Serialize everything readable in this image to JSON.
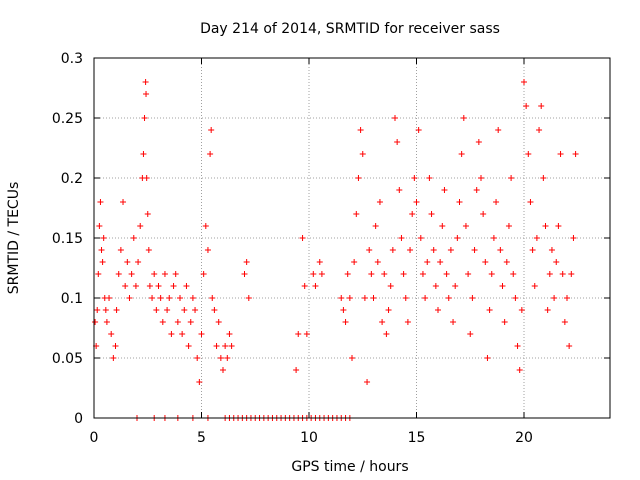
{
  "chart_data": {
    "type": "scatter",
    "title": "Day 214 of 2014, SRMTID for receiver sass",
    "xlabel": "GPS time / hours",
    "ylabel": "SRMTID / TECUs",
    "xlim": [
      0,
      24
    ],
    "ylim": [
      0,
      0.3
    ],
    "x_ticks": [
      0,
      5,
      10,
      15,
      20
    ],
    "x_tick_labels": [
      "0",
      "5",
      "10",
      "15",
      "20"
    ],
    "y_ticks": [
      0,
      0.05,
      0.1,
      0.15,
      0.2,
      0.25,
      0.3
    ],
    "y_tick_labels": [
      "0",
      "0.05",
      "0.1",
      "0.15",
      "0.2",
      "0.25",
      "0.3"
    ],
    "grid": true,
    "marker": "+",
    "series": [
      {
        "name": "SRMTID",
        "color": "#ff0000",
        "points": [
          [
            0.05,
            0.08
          ],
          [
            0.1,
            0.06
          ],
          [
            0.15,
            0.09
          ],
          [
            0.2,
            0.12
          ],
          [
            0.25,
            0.16
          ],
          [
            0.3,
            0.18
          ],
          [
            0.35,
            0.14
          ],
          [
            0.4,
            0.13
          ],
          [
            0.45,
            0.15
          ],
          [
            0.5,
            0.1
          ],
          [
            0.55,
            0.09
          ],
          [
            0.6,
            0.08
          ],
          [
            0.7,
            0.1
          ],
          [
            0.8,
            0.07
          ],
          [
            0.9,
            0.05
          ],
          [
            1.0,
            0.06
          ],
          [
            1.05,
            0.09
          ],
          [
            1.15,
            0.12
          ],
          [
            1.25,
            0.14
          ],
          [
            1.35,
            0.18
          ],
          [
            1.45,
            0.11
          ],
          [
            1.55,
            0.13
          ],
          [
            1.65,
            0.1
          ],
          [
            1.75,
            0.12
          ],
          [
            1.85,
            0.15
          ],
          [
            1.95,
            0.11
          ],
          [
            2.05,
            0.13
          ],
          [
            2.15,
            0.16
          ],
          [
            2.25,
            0.2
          ],
          [
            2.3,
            0.22
          ],
          [
            2.35,
            0.25
          ],
          [
            2.4,
            0.28
          ],
          [
            2.42,
            0.27
          ],
          [
            2.45,
            0.2
          ],
          [
            2.5,
            0.17
          ],
          [
            2.55,
            0.14
          ],
          [
            2.6,
            0.11
          ],
          [
            2.7,
            0.1
          ],
          [
            2.8,
            0.12
          ],
          [
            2.9,
            0.09
          ],
          [
            3.0,
            0.11
          ],
          [
            3.1,
            0.1
          ],
          [
            3.2,
            0.08
          ],
          [
            3.3,
            0.12
          ],
          [
            3.4,
            0.09
          ],
          [
            3.5,
            0.1
          ],
          [
            3.6,
            0.07
          ],
          [
            3.7,
            0.11
          ],
          [
            3.8,
            0.12
          ],
          [
            3.9,
            0.08
          ],
          [
            4.0,
            0.1
          ],
          [
            4.1,
            0.07
          ],
          [
            4.2,
            0.09
          ],
          [
            4.3,
            0.11
          ],
          [
            4.4,
            0.06
          ],
          [
            4.5,
            0.08
          ],
          [
            4.6,
            0.1
          ],
          [
            4.7,
            0.09
          ],
          [
            4.8,
            0.05
          ],
          [
            4.9,
            0.03
          ],
          [
            5.0,
            0.07
          ],
          [
            5.1,
            0.12
          ],
          [
            5.2,
            0.16
          ],
          [
            5.3,
            0.14
          ],
          [
            5.4,
            0.22
          ],
          [
            5.45,
            0.24
          ],
          [
            5.5,
            0.1
          ],
          [
            5.6,
            0.09
          ],
          [
            5.7,
            0.06
          ],
          [
            5.8,
            0.08
          ],
          [
            5.9,
            0.05
          ],
          [
            6.0,
            0.04
          ],
          [
            6.1,
            0.06
          ],
          [
            6.2,
            0.05
          ],
          [
            6.3,
            0.07
          ],
          [
            6.4,
            0.06
          ],
          [
            7.0,
            0.12
          ],
          [
            7.1,
            0.13
          ],
          [
            7.2,
            0.1
          ],
          [
            9.4,
            0.04
          ],
          [
            9.5,
            0.07
          ],
          [
            9.7,
            0.15
          ],
          [
            9.8,
            0.11
          ],
          [
            9.9,
            0.07
          ],
          [
            10.2,
            0.12
          ],
          [
            10.3,
            0.11
          ],
          [
            10.5,
            0.13
          ],
          [
            10.6,
            0.12
          ],
          [
            11.5,
            0.1
          ],
          [
            11.6,
            0.09
          ],
          [
            11.7,
            0.08
          ],
          [
            11.8,
            0.12
          ],
          [
            11.9,
            0.1
          ],
          [
            12.0,
            0.05
          ],
          [
            12.1,
            0.13
          ],
          [
            12.2,
            0.17
          ],
          [
            12.3,
            0.2
          ],
          [
            12.4,
            0.24
          ],
          [
            12.5,
            0.22
          ],
          [
            12.6,
            0.1
          ],
          [
            12.7,
            0.03
          ],
          [
            12.8,
            0.14
          ],
          [
            12.9,
            0.12
          ],
          [
            13.0,
            0.1
          ],
          [
            13.1,
            0.16
          ],
          [
            13.2,
            0.13
          ],
          [
            13.3,
            0.18
          ],
          [
            13.4,
            0.08
          ],
          [
            13.5,
            0.12
          ],
          [
            13.6,
            0.07
          ],
          [
            13.7,
            0.09
          ],
          [
            13.8,
            0.11
          ],
          [
            13.9,
            0.14
          ],
          [
            14.0,
            0.25
          ],
          [
            14.1,
            0.23
          ],
          [
            14.2,
            0.19
          ],
          [
            14.3,
            0.15
          ],
          [
            14.4,
            0.12
          ],
          [
            14.5,
            0.1
          ],
          [
            14.6,
            0.08
          ],
          [
            14.7,
            0.14
          ],
          [
            14.8,
            0.17
          ],
          [
            14.9,
            0.2
          ],
          [
            15.0,
            0.18
          ],
          [
            15.1,
            0.24
          ],
          [
            15.2,
            0.15
          ],
          [
            15.3,
            0.12
          ],
          [
            15.4,
            0.1
          ],
          [
            15.5,
            0.13
          ],
          [
            15.6,
            0.2
          ],
          [
            15.7,
            0.17
          ],
          [
            15.8,
            0.14
          ],
          [
            15.9,
            0.11
          ],
          [
            16.0,
            0.09
          ],
          [
            16.1,
            0.13
          ],
          [
            16.2,
            0.16
          ],
          [
            16.3,
            0.19
          ],
          [
            16.4,
            0.12
          ],
          [
            16.5,
            0.1
          ],
          [
            16.6,
            0.14
          ],
          [
            16.7,
            0.08
          ],
          [
            16.8,
            0.11
          ],
          [
            16.9,
            0.15
          ],
          [
            17.0,
            0.18
          ],
          [
            17.1,
            0.22
          ],
          [
            17.2,
            0.25
          ],
          [
            17.3,
            0.16
          ],
          [
            17.4,
            0.12
          ],
          [
            17.5,
            0.07
          ],
          [
            17.6,
            0.1
          ],
          [
            17.7,
            0.14
          ],
          [
            17.8,
            0.19
          ],
          [
            17.9,
            0.23
          ],
          [
            18.0,
            0.2
          ],
          [
            18.1,
            0.17
          ],
          [
            18.2,
            0.13
          ],
          [
            18.3,
            0.05
          ],
          [
            18.4,
            0.09
          ],
          [
            18.5,
            0.12
          ],
          [
            18.6,
            0.15
          ],
          [
            18.7,
            0.18
          ],
          [
            18.8,
            0.24
          ],
          [
            18.9,
            0.14
          ],
          [
            19.0,
            0.11
          ],
          [
            19.1,
            0.08
          ],
          [
            19.2,
            0.13
          ],
          [
            19.3,
            0.16
          ],
          [
            19.4,
            0.2
          ],
          [
            19.5,
            0.12
          ],
          [
            19.6,
            0.1
          ],
          [
            19.7,
            0.06
          ],
          [
            19.8,
            0.04
          ],
          [
            19.9,
            0.09
          ],
          [
            20.0,
            0.28
          ],
          [
            20.1,
            0.26
          ],
          [
            20.2,
            0.22
          ],
          [
            20.3,
            0.18
          ],
          [
            20.4,
            0.14
          ],
          [
            20.5,
            0.11
          ],
          [
            20.6,
            0.15
          ],
          [
            20.7,
            0.24
          ],
          [
            20.8,
            0.26
          ],
          [
            20.9,
            0.2
          ],
          [
            21.0,
            0.16
          ],
          [
            21.1,
            0.09
          ],
          [
            21.2,
            0.12
          ],
          [
            21.3,
            0.14
          ],
          [
            21.4,
            0.1
          ],
          [
            21.5,
            0.13
          ],
          [
            21.6,
            0.16
          ],
          [
            21.7,
            0.22
          ],
          [
            21.8,
            0.12
          ],
          [
            21.9,
            0.08
          ],
          [
            22.0,
            0.1
          ],
          [
            22.1,
            0.06
          ],
          [
            22.2,
            0.12
          ],
          [
            22.3,
            0.15
          ],
          [
            22.4,
            0.22
          ]
        ]
      }
    ],
    "zero_marks": [
      2.0,
      2.8,
      3.3,
      3.9,
      4.6,
      5.3,
      6.1,
      6.3,
      6.5,
      6.7,
      6.9,
      7.1,
      7.3,
      7.5,
      7.7,
      7.9,
      8.1,
      8.3,
      8.5,
      8.7,
      8.9,
      9.1,
      9.3,
      9.5,
      9.7,
      9.9,
      10.1,
      10.3,
      10.5,
      10.7,
      10.9,
      11.1,
      11.3,
      11.5,
      11.7,
      11.9
    ]
  }
}
